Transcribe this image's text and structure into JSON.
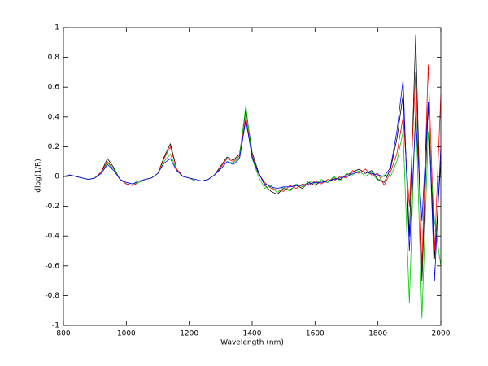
{
  "chart_data": {
    "type": "line",
    "xlabel": "Wavelength (nm)",
    "ylabel": "dlog(1/R)",
    "x": [
      800,
      820,
      840,
      860,
      880,
      900,
      920,
      940,
      960,
      980,
      1000,
      1020,
      1040,
      1060,
      1080,
      1100,
      1120,
      1140,
      1160,
      1180,
      1200,
      1220,
      1240,
      1260,
      1280,
      1300,
      1320,
      1340,
      1360,
      1380,
      1400,
      1420,
      1440,
      1460,
      1480,
      1500,
      1520,
      1540,
      1560,
      1580,
      1600,
      1620,
      1640,
      1660,
      1680,
      1700,
      1720,
      1740,
      1760,
      1780,
      1800,
      1820,
      1840,
      1860,
      1880,
      1900,
      1920,
      1940,
      1960,
      1980,
      2000
    ],
    "series": [
      {
        "color": "#000000",
        "values": [
          0,
          0.01,
          0,
          -0.01,
          -0.02,
          -0.01,
          0.03,
          0.12,
          0.06,
          -0.02,
          -0.05,
          -0.06,
          -0.04,
          -0.02,
          -0.01,
          0.02,
          0.13,
          0.22,
          0.05,
          0,
          -0.01,
          -0.03,
          -0.03,
          -0.02,
          0.01,
          0.07,
          0.13,
          0.11,
          0.15,
          0.45,
          0.16,
          0.03,
          -0.06,
          -0.1,
          -0.12,
          -0.08,
          -0.09,
          -0.06,
          -0.08,
          -0.04,
          -0.06,
          -0.03,
          -0.04,
          -0.01,
          -0.02,
          0.01,
          0.03,
          0.05,
          0.02,
          0.04,
          -0.02,
          -0.04,
          0.05,
          0.25,
          0.55,
          -0.4,
          0.95,
          -0.7,
          0.5,
          -0.55,
          0.1
        ]
      },
      {
        "color": "#ff0000",
        "values": [
          0,
          0.01,
          0,
          -0.01,
          -0.02,
          -0.01,
          0.03,
          0.1,
          0.05,
          -0.02,
          -0.05,
          -0.06,
          -0.04,
          -0.02,
          -0.01,
          0.02,
          0.12,
          0.2,
          0.05,
          0,
          -0.01,
          -0.03,
          -0.03,
          -0.02,
          0.01,
          0.06,
          0.12,
          0.1,
          0.14,
          0.4,
          0.14,
          0.02,
          -0.04,
          -0.08,
          -0.09,
          -0.1,
          -0.06,
          -0.08,
          -0.05,
          -0.06,
          -0.03,
          -0.05,
          -0.02,
          -0.03,
          0,
          -0.01,
          0.04,
          0.02,
          0.05,
          0.01,
          0.02,
          -0.06,
          0.03,
          0.15,
          0.4,
          -0.2,
          0.7,
          -0.6,
          0.75,
          -0.5,
          0.55
        ]
      },
      {
        "color": "#00cc00",
        "values": [
          0,
          0.01,
          0,
          -0.01,
          -0.02,
          -0.01,
          0.02,
          0.09,
          0.05,
          -0.02,
          -0.04,
          -0.05,
          -0.04,
          -0.02,
          -0.01,
          0.02,
          0.1,
          0.15,
          0.04,
          0,
          -0.01,
          -0.03,
          -0.03,
          -0.02,
          0.01,
          0.05,
          0.1,
          0.09,
          0.13,
          0.48,
          0.12,
          0,
          -0.08,
          -0.06,
          -0.11,
          -0.07,
          -0.1,
          -0.05,
          -0.07,
          -0.03,
          -0.05,
          -0.02,
          -0.04,
          0,
          -0.03,
          0.02,
          0.01,
          0.04,
          0,
          0.03,
          -0.03,
          0.01,
          0,
          0.1,
          0.3,
          -0.85,
          0.5,
          -0.95,
          0.3,
          -0.3,
          -0.6
        ]
      },
      {
        "color": "#0000ff",
        "values": [
          0,
          0.01,
          0,
          -0.01,
          -0.02,
          -0.01,
          0.02,
          0.08,
          0.04,
          -0.02,
          -0.04,
          -0.05,
          -0.03,
          -0.02,
          -0.01,
          0.02,
          0.09,
          0.12,
          0.04,
          0,
          -0.01,
          -0.02,
          -0.03,
          -0.02,
          0.01,
          0.05,
          0.1,
          0.08,
          0.12,
          0.38,
          0.13,
          0.02,
          -0.05,
          -0.07,
          -0.08,
          -0.07,
          -0.07,
          -0.06,
          -0.06,
          -0.05,
          -0.04,
          -0.04,
          -0.03,
          -0.02,
          -0.01,
          0,
          0.02,
          0.03,
          0.03,
          0.02,
          0.01,
          0,
          0.06,
          0.3,
          0.65,
          -0.5,
          0.4,
          -0.3,
          0.5,
          -0.7,
          0.2
        ]
      }
    ],
    "xlim": [
      800,
      2000
    ],
    "xticks": [
      800,
      1000,
      1200,
      1400,
      1600,
      1800,
      2000
    ],
    "ylim": [
      -1,
      1
    ],
    "yticks": [
      -1,
      -0.8,
      -0.6,
      -0.4,
      -0.2,
      0,
      0.2,
      0.4,
      0.6,
      0.8,
      1
    ],
    "grid": false
  }
}
